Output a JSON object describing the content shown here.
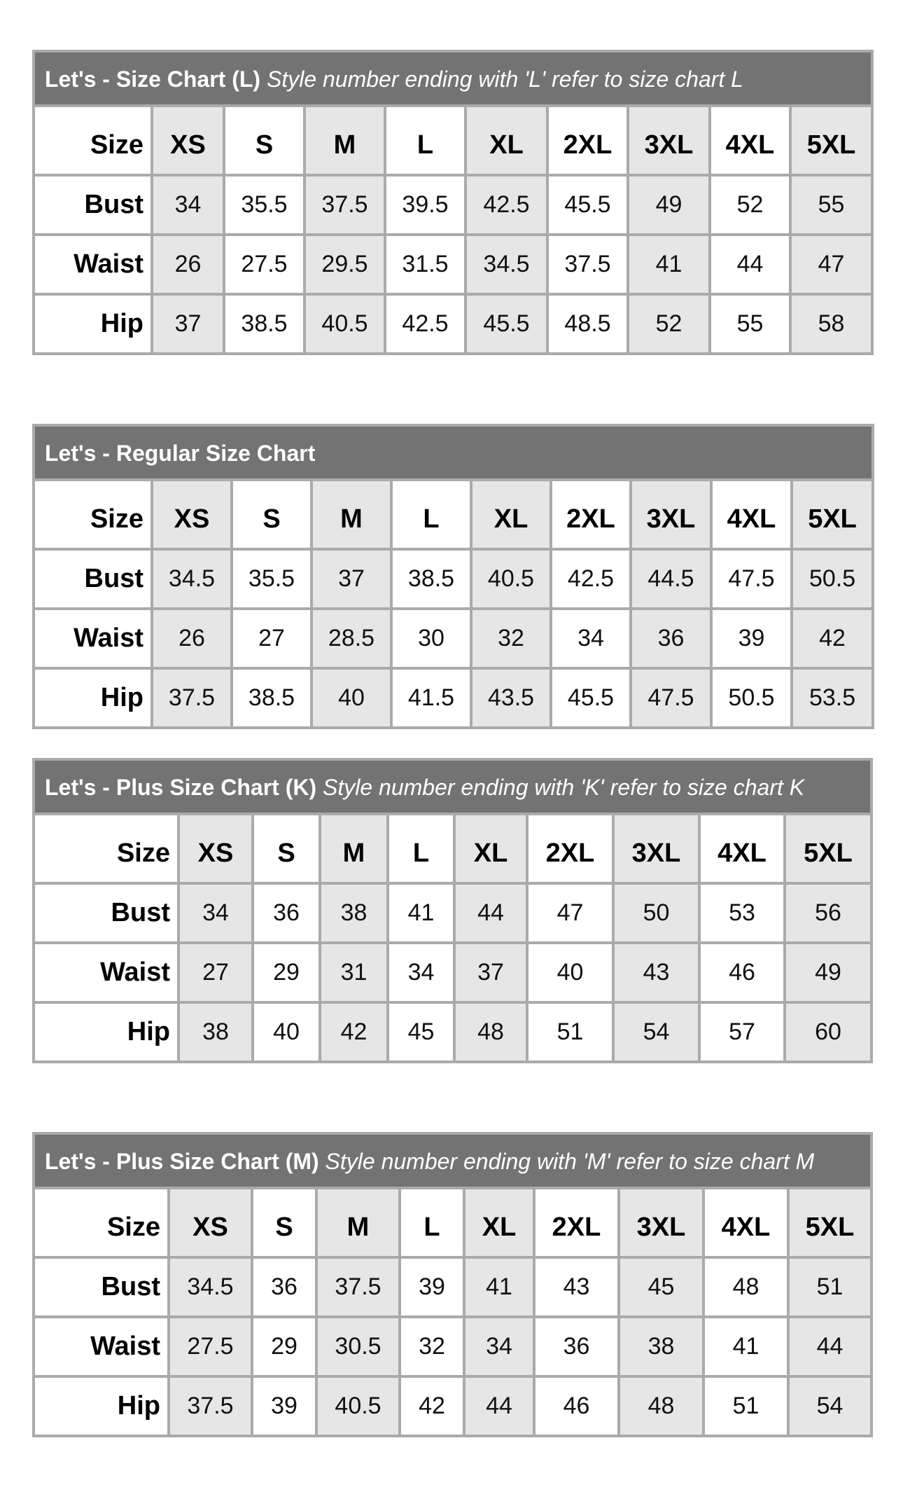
{
  "colors": {
    "header_bg": "#737373",
    "alt_column_bg": "#e6e6e6",
    "border": "#aaaaaa"
  },
  "charts": [
    {
      "title_bold": "Let's - Size Chart (L)",
      "title_italic": "Style number ending with 'L' refer to size chart L",
      "sizes": [
        "XS",
        "S",
        "M",
        "L",
        "XL",
        "2XL",
        "3XL",
        "4XL",
        "5XL"
      ],
      "rows": [
        {
          "label": "Bust",
          "values": [
            "34",
            "35.5",
            "37.5",
            "39.5",
            "42.5",
            "45.5",
            "49",
            "52",
            "55"
          ]
        },
        {
          "label": "Waist",
          "values": [
            "26",
            "27.5",
            "29.5",
            "31.5",
            "34.5",
            "37.5",
            "41",
            "44",
            "47"
          ]
        },
        {
          "label": "Hip",
          "values": [
            "37",
            "38.5",
            "40.5",
            "42.5",
            "45.5",
            "48.5",
            "52",
            "55",
            "58"
          ]
        }
      ]
    },
    {
      "title_bold": "Let's - Regular Size Chart",
      "title_italic": "",
      "sizes": [
        "XS",
        "S",
        "M",
        "L",
        "XL",
        "2XL",
        "3XL",
        "4XL",
        "5XL"
      ],
      "rows": [
        {
          "label": "Bust",
          "values": [
            "34.5",
            "35.5",
            "37",
            "38.5",
            "40.5",
            "42.5",
            "44.5",
            "47.5",
            "50.5"
          ]
        },
        {
          "label": "Waist",
          "values": [
            "26",
            "27",
            "28.5",
            "30",
            "32",
            "34",
            "36",
            "39",
            "42"
          ]
        },
        {
          "label": "Hip",
          "values": [
            "37.5",
            "38.5",
            "40",
            "41.5",
            "43.5",
            "45.5",
            "47.5",
            "50.5",
            "53.5"
          ]
        }
      ]
    },
    {
      "title_bold": "Let's - Plus Size Chart (K)",
      "title_italic": "Style number ending with 'K' refer to size chart K",
      "sizes": [
        "XS",
        "S",
        "M",
        "L",
        "XL",
        "2XL",
        "3XL",
        "4XL",
        "5XL"
      ],
      "rows": [
        {
          "label": "Bust",
          "values": [
            "34",
            "36",
            "38",
            "41",
            "44",
            "47",
            "50",
            "53",
            "56"
          ]
        },
        {
          "label": "Waist",
          "values": [
            "27",
            "29",
            "31",
            "34",
            "37",
            "40",
            "43",
            "46",
            "49"
          ]
        },
        {
          "label": "Hip",
          "values": [
            "38",
            "40",
            "42",
            "45",
            "48",
            "51",
            "54",
            "57",
            "60"
          ]
        }
      ]
    },
    {
      "title_bold": "Let's - Plus Size Chart (M)",
      "title_italic": "Style number ending with 'M' refer to size chart M",
      "sizes": [
        "XS",
        "S",
        "M",
        "L",
        "XL",
        "2XL",
        "3XL",
        "4XL",
        "5XL"
      ],
      "rows": [
        {
          "label": "Bust",
          "values": [
            "34.5",
            "36",
            "37.5",
            "39",
            "41",
            "43",
            "45",
            "48",
            "51"
          ]
        },
        {
          "label": "Waist",
          "values": [
            "27.5",
            "29",
            "30.5",
            "32",
            "34",
            "36",
            "38",
            "41",
            "44"
          ]
        },
        {
          "label": "Hip",
          "values": [
            "37.5",
            "39",
            "40.5",
            "42",
            "44",
            "46",
            "48",
            "51",
            "54"
          ]
        }
      ]
    }
  ],
  "size_label": "Size"
}
